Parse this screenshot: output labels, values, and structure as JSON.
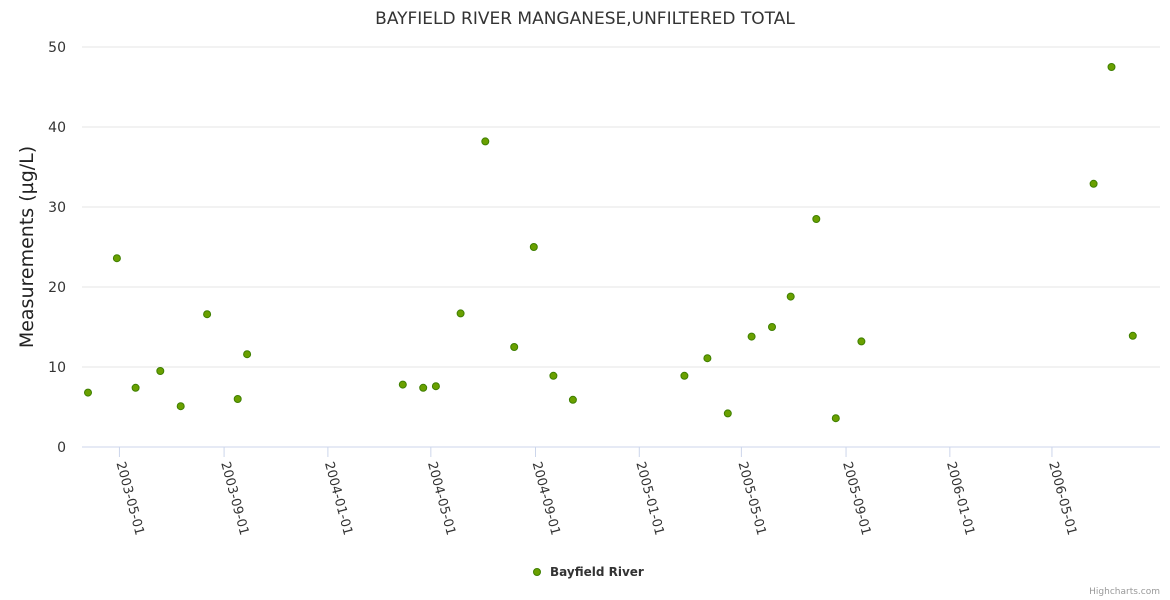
{
  "chart_data": {
    "type": "scatter",
    "title": "BAYFIELD RIVER MANGANESE,UNFILTERED TOTAL",
    "ylabel": "Measurements (µg/L)",
    "xlabel": "",
    "ylim": [
      0,
      50
    ],
    "yticks": [
      0,
      10,
      20,
      30,
      40,
      50
    ],
    "xlim": [
      "2003-03-18",
      "2006-09-05"
    ],
    "xticks": [
      "2003-05-01",
      "2003-09-01",
      "2004-01-01",
      "2004-05-01",
      "2004-09-01",
      "2005-01-01",
      "2005-05-01",
      "2005-09-01",
      "2006-01-01",
      "2006-05-01"
    ],
    "grid": true,
    "series": [
      {
        "name": "Bayfield River",
        "color": "#6aa000",
        "points": [
          {
            "x": "2003-03-25",
            "y": 6.8
          },
          {
            "x": "2003-04-28",
            "y": 23.6
          },
          {
            "x": "2003-05-20",
            "y": 7.4
          },
          {
            "x": "2003-06-18",
            "y": 9.5
          },
          {
            "x": "2003-07-12",
            "y": 5.1
          },
          {
            "x": "2003-08-12",
            "y": 16.6
          },
          {
            "x": "2003-09-17",
            "y": 6.0
          },
          {
            "x": "2003-09-28",
            "y": 11.6
          },
          {
            "x": "2004-03-29",
            "y": 7.8
          },
          {
            "x": "2004-04-22",
            "y": 7.4
          },
          {
            "x": "2004-05-07",
            "y": 7.6
          },
          {
            "x": "2004-06-05",
            "y": 16.7
          },
          {
            "x": "2004-07-04",
            "y": 38.2
          },
          {
            "x": "2004-08-07",
            "y": 12.5
          },
          {
            "x": "2004-08-30",
            "y": 25.0
          },
          {
            "x": "2004-09-22",
            "y": 8.9
          },
          {
            "x": "2004-10-15",
            "y": 5.9
          },
          {
            "x": "2005-02-23",
            "y": 8.9
          },
          {
            "x": "2005-03-22",
            "y": 11.1
          },
          {
            "x": "2005-04-15",
            "y": 4.2
          },
          {
            "x": "2005-05-13",
            "y": 13.8
          },
          {
            "x": "2005-06-06",
            "y": 15.0
          },
          {
            "x": "2005-06-28",
            "y": 18.8
          },
          {
            "x": "2005-07-28",
            "y": 28.5
          },
          {
            "x": "2005-08-20",
            "y": 3.6
          },
          {
            "x": "2005-09-19",
            "y": 13.2
          },
          {
            "x": "2006-06-19",
            "y": 32.9
          },
          {
            "x": "2006-07-10",
            "y": 47.5
          },
          {
            "x": "2006-08-04",
            "y": 13.9
          }
        ]
      }
    ]
  },
  "credits": "Highcharts.com"
}
